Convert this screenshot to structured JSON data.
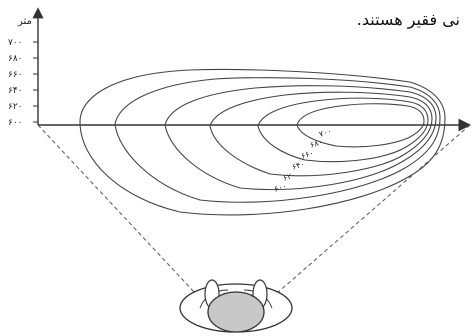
{
  "caption": "نی فقیر هستند.",
  "axis": {
    "y_unit": "متر",
    "y_ticks": [
      "۷۰۰",
      "۶۸۰",
      "۶۶۰",
      "۶۴۰",
      "۶۲۰",
      "۶۰۰"
    ]
  },
  "contours": [
    "۷۰۰",
    "۶۸۰",
    "۶۶۰",
    "۶۴۰",
    "۶۲۰",
    "۶۰۰"
  ],
  "colors": {
    "line": "#444444",
    "head": "#c8c8c8"
  }
}
